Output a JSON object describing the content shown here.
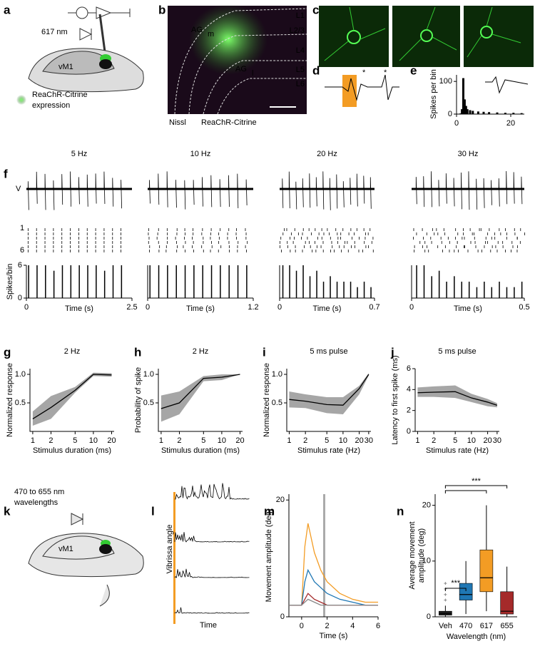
{
  "figure": {
    "panel_labels": [
      "a",
      "b",
      "c",
      "d",
      "e",
      "f",
      "g",
      "h",
      "i",
      "j",
      "k",
      "l",
      "m",
      "n"
    ],
    "a": {
      "wavelength": "617 nm",
      "region": "vM1",
      "expression": [
        "ReaChR-Citrine",
        "expression"
      ]
    },
    "b": {
      "areas": [
        {
          "name": "AG",
          "sub": "m"
        },
        {
          "name": "AG",
          "sub": "l"
        }
      ],
      "layers": [
        "L1",
        "L2/3",
        "L4",
        "L5",
        "L6"
      ],
      "stains": [
        "Nissl",
        "ReaChR-Citrine"
      ]
    },
    "d": {
      "marks": [
        "*",
        "*"
      ]
    },
    "k": {
      "wavelengths": [
        "470 to 655 nm",
        "wavelengths"
      ],
      "region": "vM1"
    },
    "l": {
      "ylabel": "Vibrissa angle",
      "xlabel": "Time"
    }
  },
  "chart_data": [
    {
      "type": "histogram",
      "panel": "e",
      "ylabel": "Spikes per bin",
      "x": [
        1,
        1.5,
        2,
        2.5,
        3,
        3.5,
        4,
        5,
        6,
        8,
        10,
        12,
        15,
        18,
        21,
        24
      ],
      "values": [
        0,
        2,
        15,
        110,
        45,
        25,
        15,
        12,
        10,
        8,
        7,
        6,
        5,
        4,
        4,
        3
      ],
      "color": "#000000",
      "xlim": [
        0,
        25
      ],
      "ylim": [
        0,
        120
      ],
      "xticks": [
        0,
        20
      ],
      "yticks": [
        0,
        100
      ]
    },
    {
      "type": "spikes",
      "panel": "f",
      "title": "5 Hz",
      "trace_label": "V",
      "raster_labels": [
        "1",
        "6"
      ],
      "ylabel": "Spikes/bin",
      "xlabel": "Time (s)",
      "x": [
        0.04,
        0.24,
        0.44,
        0.64,
        0.84,
        1.04,
        1.24,
        1.44,
        1.64,
        1.84,
        2.04,
        2.24
      ],
      "values": [
        6,
        6,
        6,
        5,
        6,
        6,
        6,
        6,
        6,
        5,
        6,
        6
      ],
      "xlim": [
        0,
        2.5
      ],
      "ylim": [
        0,
        6
      ],
      "xticks": [
        0,
        2.5
      ],
      "yticks": [
        0,
        6
      ]
    },
    {
      "type": "spikes",
      "panel": "f",
      "title": "10 Hz",
      "xlabel": "Time (s)",
      "x": [
        0.02,
        0.12,
        0.22,
        0.32,
        0.42,
        0.52,
        0.62,
        0.72,
        0.82,
        0.92,
        1.02,
        1.12
      ],
      "values": [
        6,
        6,
        6,
        6,
        6,
        6,
        6,
        6,
        6,
        6,
        6,
        6
      ],
      "xlim": [
        0,
        1.2
      ],
      "ylim": [
        0,
        6
      ],
      "xticks": [
        0,
        1.2
      ]
    },
    {
      "type": "spikes",
      "panel": "f",
      "title": "20 Hz",
      "xlabel": "Time (s)",
      "x": [
        0.02,
        0.07,
        0.12,
        0.17,
        0.22,
        0.27,
        0.32,
        0.37,
        0.42,
        0.47,
        0.52,
        0.57,
        0.62,
        0.67
      ],
      "values": [
        6,
        6,
        5,
        6,
        4,
        5,
        3,
        4,
        3,
        3,
        3,
        2,
        3,
        2
      ],
      "xlim": [
        0,
        0.7
      ],
      "ylim": [
        0,
        6
      ],
      "xticks": [
        0,
        0.7
      ]
    },
    {
      "type": "spikes",
      "panel": "f",
      "title": "30 Hz",
      "xlabel": "Time (s)",
      "x": [
        0.02,
        0.053,
        0.087,
        0.12,
        0.153,
        0.187,
        0.22,
        0.253,
        0.287,
        0.32,
        0.353,
        0.387,
        0.42,
        0.453,
        0.487
      ],
      "values": [
        6,
        6,
        4,
        5,
        3,
        4,
        3,
        3,
        2,
        3,
        2,
        3,
        2,
        2,
        3
      ],
      "xlim": [
        0,
        0.5
      ],
      "ylim": [
        0,
        6
      ],
      "xticks": [
        0,
        0.5
      ]
    },
    {
      "type": "line",
      "panel": "g",
      "title": "2 Hz",
      "ylabel": "Normalized response",
      "xlabel": "Stimulus duration (ms)",
      "log_x": true,
      "x": [
        1,
        2,
        5,
        10,
        20
      ],
      "series": [
        {
          "color": "#000000",
          "values": [
            0.22,
            0.42,
            0.72,
            1.0,
            0.99
          ],
          "lower": [
            0.1,
            0.22,
            0.68,
            0.97,
            0.96
          ],
          "upper": [
            0.35,
            0.62,
            0.78,
            1.03,
            1.02
          ]
        }
      ],
      "xlim": [
        0.9,
        22
      ],
      "ylim": [
        0,
        1.1
      ],
      "xticks": [
        1,
        2,
        5,
        10,
        20
      ],
      "yticks": [
        0.5,
        {
          "value": 1,
          "label": "1.0"
        }
      ]
    },
    {
      "type": "line",
      "panel": "h",
      "title": "2 Hz",
      "ylabel": "Probability of spike",
      "xlabel": "Stimulus duration (ms)",
      "log_x": true,
      "x": [
        1,
        2,
        5,
        10,
        20
      ],
      "series": [
        {
          "color": "#000000",
          "values": [
            0.4,
            0.5,
            0.93,
            0.95,
            1.0
          ],
          "lower": [
            0.17,
            0.3,
            0.88,
            0.9,
            1.0
          ],
          "upper": [
            0.63,
            0.7,
            0.97,
            1.0,
            1.0
          ]
        }
      ],
      "xlim": [
        0.9,
        22
      ],
      "ylim": [
        0,
        1.1
      ],
      "xticks": [
        1,
        2,
        5,
        10,
        20
      ],
      "yticks": [
        0.5,
        {
          "value": 1,
          "label": "1.0"
        }
      ]
    },
    {
      "type": "line",
      "panel": "i",
      "title": "5 ms pulse",
      "ylabel": "Normalized response",
      "xlabel": "Stimulus rate (Hz)",
      "log_x": true,
      "x": [
        1,
        2,
        5,
        10,
        20,
        30
      ],
      "series": [
        {
          "color": "#000000",
          "values": [
            0.56,
            0.53,
            0.47,
            0.46,
            0.75,
            1.0
          ],
          "lower": [
            0.42,
            0.41,
            0.32,
            0.3,
            0.65,
            0.98
          ],
          "upper": [
            0.7,
            0.65,
            0.6,
            0.6,
            0.8,
            1.02
          ]
        }
      ],
      "xlim": [
        0.9,
        33
      ],
      "ylim": [
        0,
        1.1
      ],
      "xticks": [
        1,
        2,
        5,
        10,
        20,
        30
      ],
      "yticks": [
        0.5,
        {
          "value": 1,
          "label": "1.0"
        }
      ]
    },
    {
      "type": "line",
      "panel": "j",
      "title": "5 ms pulse",
      "ylabel": "Latency to first spike (ms)",
      "xlabel": "Stimulus rate (Hz)",
      "log_x": true,
      "x": [
        1,
        2,
        5,
        10,
        20,
        30
      ],
      "series": [
        {
          "color": "#000000",
          "values": [
            3.7,
            3.75,
            3.8,
            3.2,
            2.8,
            2.5
          ],
          "lower": [
            3.3,
            3.3,
            3.2,
            2.8,
            2.4,
            2.3
          ],
          "upper": [
            4.2,
            4.3,
            4.4,
            3.6,
            3.1,
            2.7
          ]
        }
      ],
      "xlim": [
        0.9,
        33
      ],
      "ylim": [
        0,
        6
      ],
      "xticks": [
        1,
        2,
        5,
        10,
        20,
        30
      ],
      "yticks": [
        0,
        2,
        4,
        6
      ]
    },
    {
      "type": "line",
      "panel": "m",
      "ylabel": "Movement amplitude (deg)",
      "xlabel": "Time (s)",
      "x": [
        -1,
        -0.5,
        0,
        0.25,
        0.5,
        1,
        1.5,
        2,
        3,
        4,
        5,
        6
      ],
      "series": [
        {
          "color": "#f39c24",
          "values": [
            2,
            2,
            2,
            12,
            16,
            11,
            8,
            6,
            4,
            3,
            2.5,
            2.5
          ]
        },
        {
          "color": "#1f77b4",
          "values": [
            2,
            2,
            2,
            6,
            8,
            6,
            5,
            4,
            3,
            2.5,
            2,
            2
          ]
        },
        {
          "color": "#a52a2a",
          "values": [
            2,
            2,
            2,
            3,
            4,
            3,
            2.5,
            2,
            2,
            2,
            2,
            2
          ]
        },
        {
          "color": "#888888",
          "values": [
            2,
            2,
            2,
            2.5,
            3,
            2.5,
            2,
            2,
            2,
            2,
            2,
            2
          ]
        }
      ],
      "xlim": [
        -1,
        6
      ],
      "ylim": [
        0,
        21
      ],
      "xticks": [
        0,
        2,
        4,
        6
      ],
      "yticks": [
        0,
        20
      ]
    },
    {
      "type": "box",
      "panel": "n",
      "ylabel": [
        "Average movement",
        "amplitude (deg)"
      ],
      "xlabel": "Wavelength (nm)",
      "categories": [
        "Veh",
        "470",
        "617",
        "655"
      ],
      "colors": [
        "#222222",
        "#1f77b4",
        "#f39c24",
        "#a52a2a"
      ],
      "boxes": [
        {
          "min": 0,
          "q1": 0.3,
          "median": 0.6,
          "q3": 1,
          "max": 2,
          "outliers": [
            3,
            4,
            5,
            6
          ]
        },
        {
          "min": 0.5,
          "q1": 3,
          "median": 4,
          "q3": 6,
          "max": 10,
          "outliers": []
        },
        {
          "min": 1,
          "q1": 4.5,
          "median": 7,
          "q3": 12,
          "max": 20,
          "outliers": []
        },
        {
          "min": 0,
          "q1": 0.5,
          "median": 1,
          "q3": 4.5,
          "max": 9,
          "outliers": []
        }
      ],
      "significance_labels": [
        "***",
        "***"
      ],
      "ylim": [
        0,
        22
      ],
      "yticks": [
        0,
        10,
        20
      ]
    }
  ]
}
